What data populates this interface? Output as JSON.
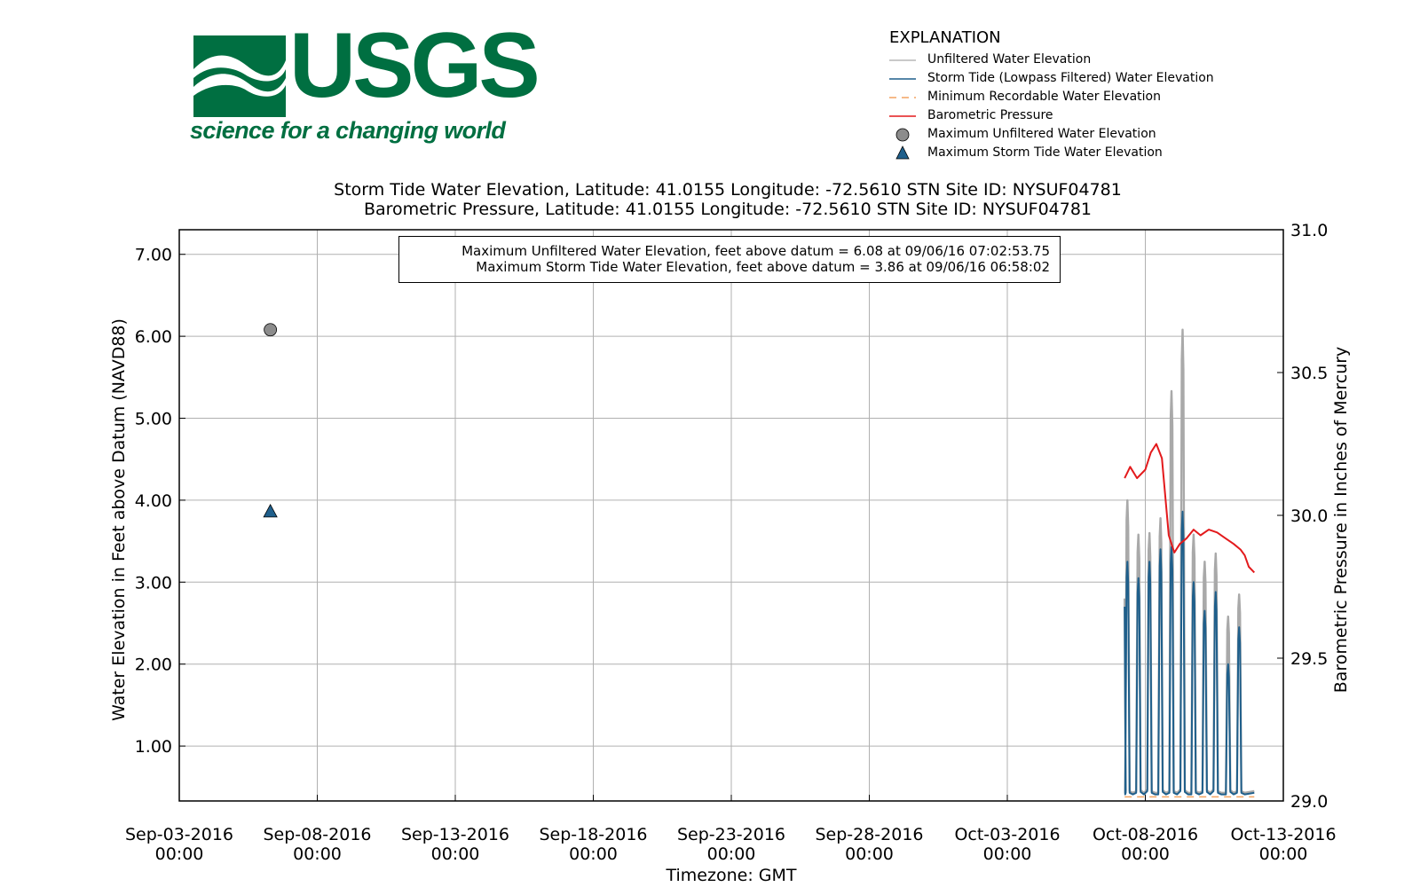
{
  "logo": {
    "word": "USGS",
    "tagline": "science for a changing world",
    "color": "#006f41"
  },
  "legend": {
    "title": "EXPLANATION",
    "items": [
      {
        "label": "Unfiltered Water Elevation",
        "kind": "line",
        "color": "#a9a9a9",
        "dash": ""
      },
      {
        "label": "Storm Tide (Lowpass Filtered) Water Elevation",
        "kind": "line",
        "color": "#1f5f8b",
        "dash": ""
      },
      {
        "label": "Minimum Recordable Water Elevation",
        "kind": "line",
        "color": "#f4a460",
        "dash": "8,6"
      },
      {
        "label": "Barometric Pressure",
        "kind": "line",
        "color": "#e31a1c",
        "dash": ""
      },
      {
        "label": "Maximum Unfiltered Water Elevation",
        "kind": "circle",
        "color": "#8c8c8c"
      },
      {
        "label": "Maximum Storm Tide Water Elevation",
        "kind": "triangle",
        "color": "#1f5f8b"
      }
    ]
  },
  "titles": {
    "line1": "Storm Tide Water Elevation, Latitude: 41.0155 Longitude: -72.5610 STN Site ID: NYSUF04781",
    "line2": "Barometric Pressure, Latitude: 41.0155 Longitude: -72.5610 STN Site ID: NYSUF04781"
  },
  "annotation": {
    "line1": "Maximum Unfiltered Water Elevation, feet above datum = 6.08 at 09/06/16 07:02:53.75",
    "line2": "Maximum Storm Tide Water Elevation, feet above datum = 3.86 at 09/06/16 06:58:02"
  },
  "chart_data": {
    "type": "line",
    "xlabel": "Timezone: GMT",
    "ylabel_left": "Water Elevation in Feet above Datum (NAVD88)",
    "ylabel_right": "Barometric Pressure in Inches of Mercury",
    "x_range_days": [
      0,
      40
    ],
    "x_ticks": [
      {
        "day": 0,
        "date": "Sep-03-2016",
        "time": "00:00"
      },
      {
        "day": 5,
        "date": "Sep-08-2016",
        "time": "00:00"
      },
      {
        "day": 10,
        "date": "Sep-13-2016",
        "time": "00:00"
      },
      {
        "day": 15,
        "date": "Sep-18-2016",
        "time": "00:00"
      },
      {
        "day": 20,
        "date": "Sep-23-2016",
        "time": "00:00"
      },
      {
        "day": 25,
        "date": "Sep-28-2016",
        "time": "00:00"
      },
      {
        "day": 30,
        "date": "Oct-03-2016",
        "time": "00:00"
      },
      {
        "day": 35,
        "date": "Oct-08-2016",
        "time": "00:00"
      },
      {
        "day": 40,
        "date": "Oct-13-2016",
        "time": "00:00"
      }
    ],
    "y_left_range": [
      0.33,
      7.3
    ],
    "y_left_ticks": [
      "1.00",
      "2.00",
      "3.00",
      "4.00",
      "5.00",
      "6.00",
      "7.00"
    ],
    "y_right_range": [
      29.0,
      31.0
    ],
    "y_right_ticks": [
      "29.0",
      "29.5",
      "30.0",
      "30.5",
      "31.0"
    ],
    "grid": true,
    "series": [
      {
        "name": "Unfiltered Water Elevation",
        "color": "#a9a9a9",
        "start_day": 34.25,
        "end_day": 38.95,
        "start_value": 2.8,
        "base_value": 0.45,
        "peaks": [
          {
            "day": 34.35,
            "value": 4.0
          },
          {
            "day": 34.75,
            "value": 3.58
          },
          {
            "day": 35.15,
            "value": 3.6
          },
          {
            "day": 35.55,
            "value": 3.78
          },
          {
            "day": 35.95,
            "value": 5.33
          },
          {
            "day": 36.35,
            "value": 6.08
          },
          {
            "day": 36.75,
            "value": 3.58
          },
          {
            "day": 37.15,
            "value": 3.25
          },
          {
            "day": 37.55,
            "value": 3.35
          },
          {
            "day": 38.0,
            "value": 2.58
          },
          {
            "day": 38.4,
            "value": 2.85
          }
        ]
      },
      {
        "name": "Storm Tide (Lowpass Filtered) Water Elevation",
        "color": "#1f5f8b",
        "start_day": 34.25,
        "end_day": 38.95,
        "start_value": 2.7,
        "base_value": 0.43,
        "peaks": [
          {
            "day": 34.35,
            "value": 3.25
          },
          {
            "day": 34.75,
            "value": 3.05
          },
          {
            "day": 35.15,
            "value": 3.25
          },
          {
            "day": 35.55,
            "value": 3.4
          },
          {
            "day": 35.95,
            "value": 3.43
          },
          {
            "day": 36.35,
            "value": 3.86
          },
          {
            "day": 36.75,
            "value": 3.0
          },
          {
            "day": 37.15,
            "value": 2.65
          },
          {
            "day": 37.55,
            "value": 2.88
          },
          {
            "day": 38.0,
            "value": 2.0
          },
          {
            "day": 38.4,
            "value": 2.45
          }
        ]
      },
      {
        "name": "Minimum Recordable Water Elevation",
        "color": "#f4a460",
        "x": [
          34.25,
          38.95
        ],
        "y": [
          0.38,
          0.38
        ]
      },
      {
        "name": "Barometric Pressure",
        "color": "#e31a1c",
        "axis": "right",
        "x": [
          34.25,
          34.45,
          34.7,
          35.0,
          35.2,
          35.4,
          35.6,
          35.85,
          36.05,
          36.25,
          36.5,
          36.75,
          37.0,
          37.3,
          37.6,
          37.9,
          38.2,
          38.45,
          38.6,
          38.75,
          38.95
        ],
        "y": [
          30.13,
          30.17,
          30.13,
          30.16,
          30.22,
          30.25,
          30.2,
          29.93,
          29.87,
          29.9,
          29.92,
          29.95,
          29.93,
          29.95,
          29.94,
          29.92,
          29.9,
          29.88,
          29.86,
          29.82,
          29.8
        ]
      }
    ],
    "markers": [
      {
        "name": "Maximum Unfiltered Water Elevation",
        "shape": "circle",
        "day": 3.3,
        "value": 6.08,
        "color": "#8c8c8c"
      },
      {
        "name": "Maximum Storm Tide Water Elevation",
        "shape": "triangle",
        "day": 3.3,
        "value": 3.86,
        "color": "#1f5f8b"
      }
    ]
  }
}
